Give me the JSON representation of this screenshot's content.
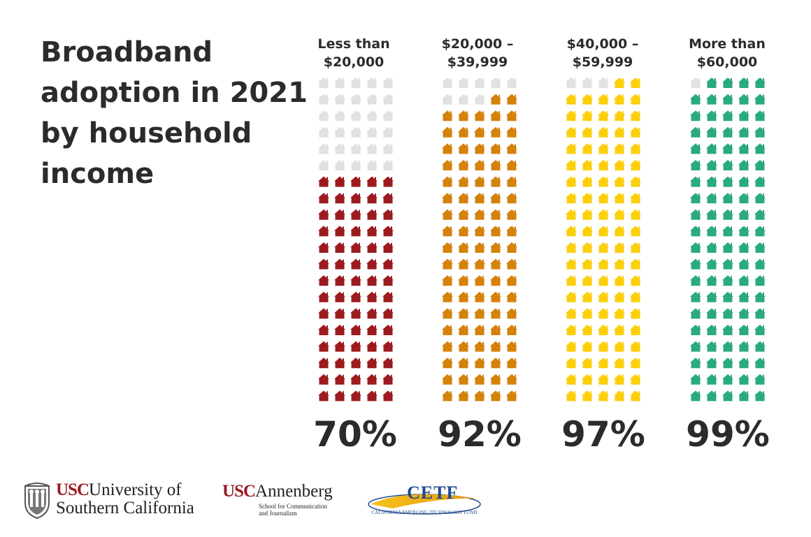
{
  "title_lines": [
    "Broadband",
    "adoption in 2021",
    "by household",
    "income"
  ],
  "columns": [
    {
      "label_lines": [
        "Less than",
        "$20,000"
      ],
      "percent_label": "70%"
    },
    {
      "label_lines": [
        "$20,000 –",
        "$39,999"
      ],
      "percent_label": "92%"
    },
    {
      "label_lines": [
        "$40,000 –",
        "$59,999"
      ],
      "percent_label": "97%"
    },
    {
      "label_lines": [
        "More than",
        "$60,000"
      ],
      "percent_label": "99%"
    }
  ],
  "chart_data": {
    "type": "waffle",
    "unit_icon": "house-icon",
    "units_per_column": 100,
    "grid": "5 wide x 20 tall, filled from bottom",
    "categories": [
      "Less than $20,000",
      "$20,000 – $39,999",
      "$40,000 – $59,999",
      "More than $60,000"
    ],
    "values": [
      70,
      92,
      97,
      99
    ],
    "value_unit": "percent",
    "colors": [
      "#9b1b1f",
      "#d4820a",
      "#fbcf0a",
      "#2aa982"
    ],
    "empty_color": "#e1e1e1"
  },
  "logos": {
    "usc": {
      "line1_red": "USC",
      "line1_rest": "University of",
      "line2": "Southern California"
    },
    "annenberg": {
      "red": "USC",
      "rest": "Annenberg",
      "sub1": "School for Communication",
      "sub2": "and Journalism"
    },
    "cetf": {
      "mark": "CETF",
      "arc_text": "CALIFORNIA EMERGING TECHNOLOGY FUND"
    }
  }
}
